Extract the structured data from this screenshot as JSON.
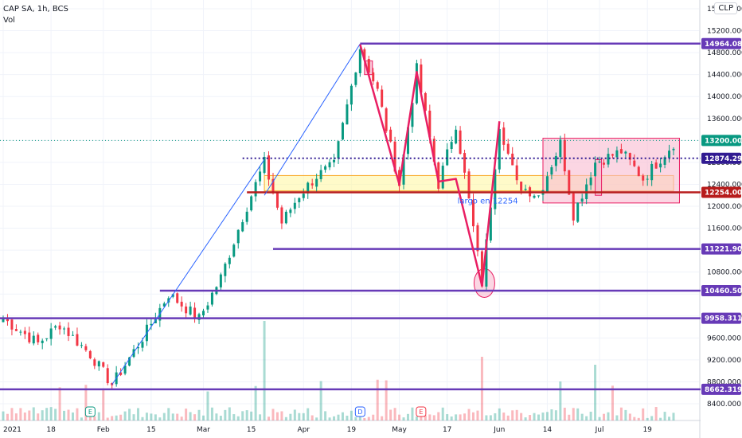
{
  "header": {
    "title": "CAP SA, 1h, BCS",
    "volume_label": "Vol",
    "currency": "CLP"
  },
  "chart_data": {
    "type": "candlestick",
    "y_range": [
      8200,
      15500
    ],
    "y_ticks": [
      "15600.000",
      "15200.000",
      "14800.000",
      "14400.000",
      "14000.000",
      "13600.000",
      "13200.000",
      "12800.000",
      "12400.000",
      "12000.000",
      "11600.000",
      "11200.000",
      "10800.000",
      "10400.000",
      "10000.000",
      "9600.000",
      "9200.000",
      "8800.000",
      "8400.000"
    ],
    "x_ticks": [
      "2021",
      "18",
      "Feb",
      "15",
      "Mar",
      "15",
      "Apr",
      "19",
      "May",
      "17",
      "Jun",
      "14",
      "Jul",
      "19"
    ],
    "x_tick_index": [
      0,
      11,
      23,
      34,
      46,
      57,
      69,
      80,
      91,
      102,
      114,
      125,
      137,
      148
    ],
    "n_bars": 155,
    "price_path": [
      {
        "i": 0,
        "p": 9950
      },
      {
        "i": 8,
        "p": 9500
      },
      {
        "i": 13,
        "p": 9850
      },
      {
        "i": 20,
        "p": 9300
      },
      {
        "i": 25,
        "p": 8750
      },
      {
        "i": 32,
        "p": 9600
      },
      {
        "i": 38,
        "p": 10400
      },
      {
        "i": 45,
        "p": 9950
      },
      {
        "i": 50,
        "p": 10700
      },
      {
        "i": 55,
        "p": 11800
      },
      {
        "i": 60,
        "p": 12800
      },
      {
        "i": 64,
        "p": 11700
      },
      {
        "i": 68,
        "p": 12200
      },
      {
        "i": 72,
        "p": 12550
      },
      {
        "i": 76,
        "p": 12750
      },
      {
        "i": 82,
        "p": 14900
      },
      {
        "i": 86,
        "p": 14100
      },
      {
        "i": 91,
        "p": 12400
      },
      {
        "i": 95,
        "p": 14500
      },
      {
        "i": 100,
        "p": 12400
      },
      {
        "i": 104,
        "p": 13500
      },
      {
        "i": 107,
        "p": 12100
      },
      {
        "i": 110,
        "p": 10600
      },
      {
        "i": 114,
        "p": 13500
      },
      {
        "i": 118,
        "p": 12400
      },
      {
        "i": 123,
        "p": 12200
      },
      {
        "i": 128,
        "p": 13150
      },
      {
        "i": 131,
        "p": 11850
      },
      {
        "i": 136,
        "p": 12800
      },
      {
        "i": 142,
        "p": 13000
      },
      {
        "i": 147,
        "p": 12500
      },
      {
        "i": 154,
        "p": 13150
      }
    ],
    "horizontal_levels": [
      {
        "value": 14964.08,
        "label": "14964.080",
        "color": "#673ab7",
        "style": "solid"
      },
      {
        "value": 13200.0,
        "label": "13200.000",
        "color": "#089981",
        "style": "dotted-current"
      },
      {
        "value": 12874.293,
        "label": "12874.293",
        "color": "#311b92",
        "style": "dotted"
      },
      {
        "value": 12254.0,
        "label": "12254.000",
        "color": "#b71c1c",
        "style": "solid"
      },
      {
        "value": 11221.903,
        "label": "11221.903",
        "color": "#673ab7",
        "style": "solid"
      },
      {
        "value": 10460.508,
        "label": "10460.508",
        "color": "#673ab7",
        "style": "solid"
      },
      {
        "value": 9958.311,
        "label": "9958.311",
        "color": "#673ab7",
        "style": "solid"
      },
      {
        "value": 8662.319,
        "label": "8662.319",
        "color": "#673ab7",
        "style": "solid"
      }
    ],
    "annotation_text": "largo en 12254",
    "event_markers": [
      "E",
      "D",
      "E"
    ],
    "colors": {
      "up": "#089981",
      "down": "#f23645",
      "level": "#673ab7",
      "zigzag": "#e91e63",
      "trend": "#2962ff",
      "support_zone": "#fff59d",
      "range_box": "#f8bbd0"
    }
  }
}
